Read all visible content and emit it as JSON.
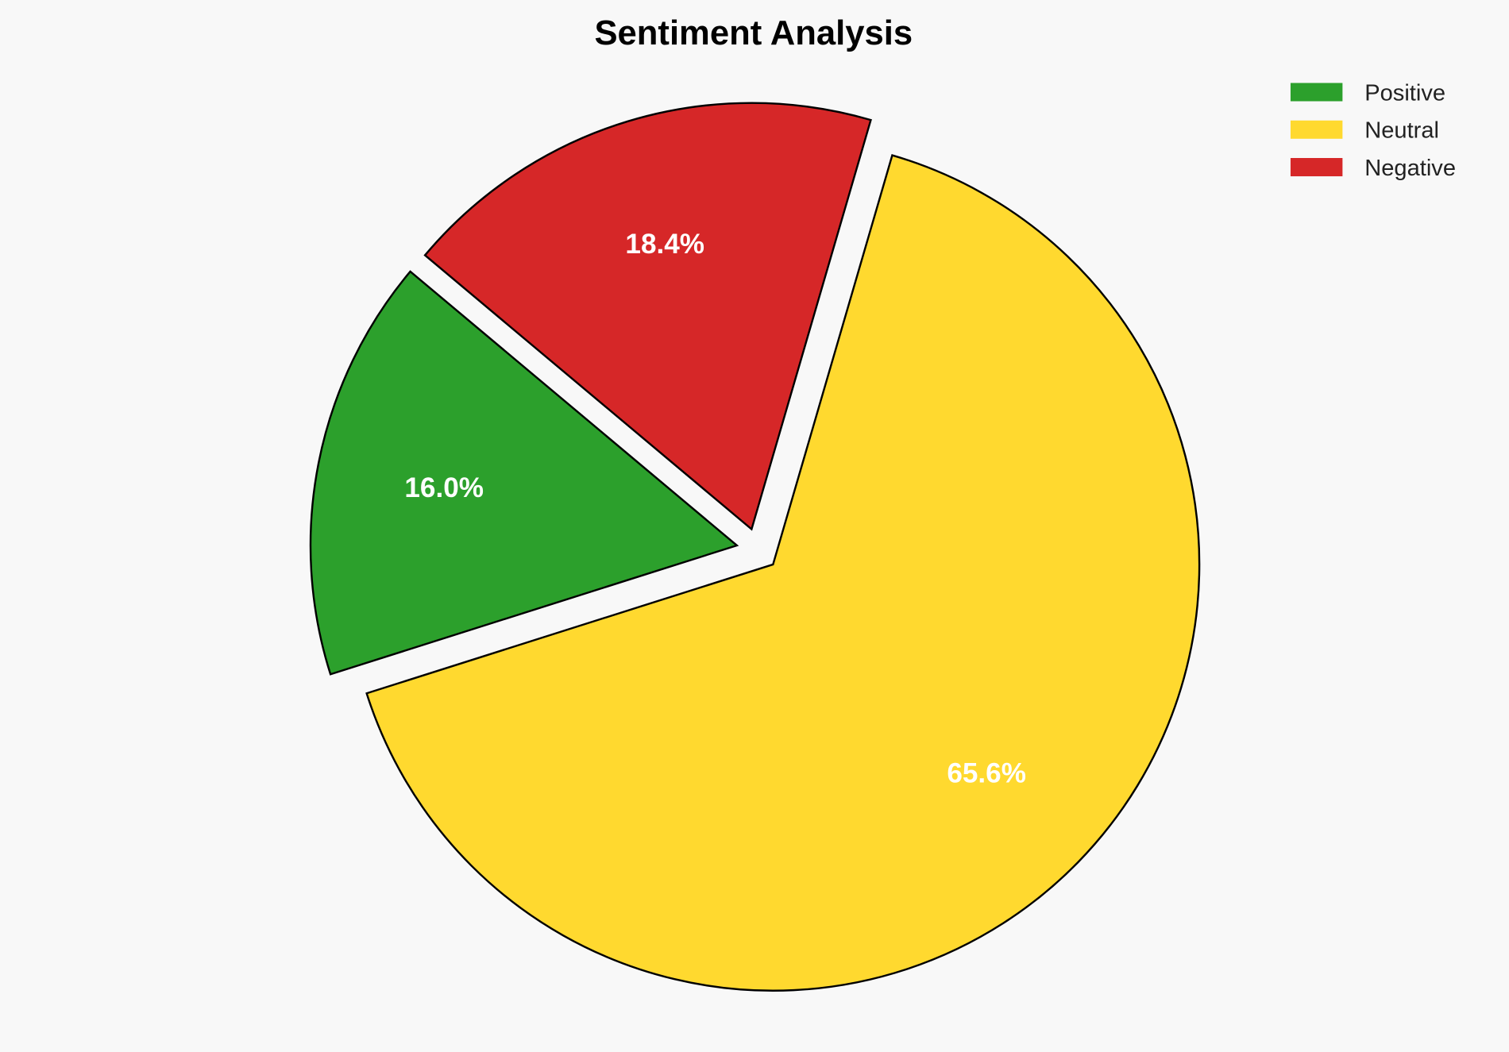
{
  "chart_data": {
    "type": "pie",
    "title": "Sentiment Analysis",
    "categories": [
      "Positive",
      "Neutral",
      "Negative"
    ],
    "values": [
      16.0,
      65.6,
      18.4
    ],
    "labels": [
      "16.0%",
      "65.6%",
      "18.4%"
    ],
    "colors": [
      "#2ca02c",
      "#ffd92f",
      "#d62728"
    ],
    "start_angle_deg": 140,
    "direction": "counterclockwise",
    "explode": [
      0.05,
      0.05,
      0.05
    ],
    "edge_color": "#000000",
    "legend_placement": "top-right",
    "background": "#f8f8f8"
  }
}
